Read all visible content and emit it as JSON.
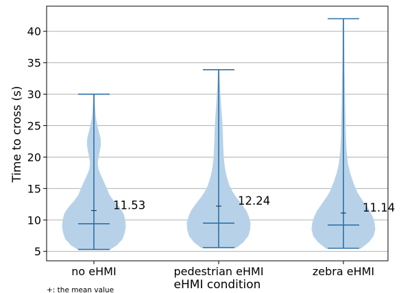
{
  "chart_data": {
    "type": "violin",
    "xlabel": "eHMI condition",
    "ylabel": "Time to cross (s)",
    "ylim": [
      3.5,
      44
    ],
    "yticks": [
      5,
      10,
      15,
      20,
      25,
      30,
      35,
      40
    ],
    "grid": "horizontal",
    "footnote": "+: the mean value",
    "colors": {
      "violin": "#b7d2e8",
      "lines": "#2b6fa8",
      "grid": "#b0b0b0"
    },
    "series": [
      {
        "category": "no eHMI",
        "min": 5.3,
        "max": 30,
        "median": 9.4,
        "mean": 11.5,
        "mean_label": "11.53",
        "density": [
          [
            5.3,
            0.5
          ],
          [
            6,
            0.72
          ],
          [
            7,
            0.9
          ],
          [
            8,
            0.97
          ],
          [
            9,
            1.0
          ],
          [
            10,
            0.98
          ],
          [
            11,
            0.93
          ],
          [
            12,
            0.8
          ],
          [
            13,
            0.62
          ],
          [
            14,
            0.48
          ],
          [
            15,
            0.4
          ],
          [
            16,
            0.31
          ],
          [
            17,
            0.22
          ],
          [
            18,
            0.14
          ],
          [
            19,
            0.11
          ],
          [
            20,
            0.14
          ],
          [
            21,
            0.18
          ],
          [
            22,
            0.21
          ],
          [
            23,
            0.2
          ],
          [
            24,
            0.15
          ],
          [
            25,
            0.1
          ],
          [
            26,
            0.06
          ],
          [
            27,
            0.04
          ],
          [
            28,
            0.025
          ],
          [
            29,
            0.015
          ],
          [
            30,
            0.01
          ]
        ]
      },
      {
        "category": "pedestrian eHMI",
        "min": 5.6,
        "max": 33.9,
        "median": 9.5,
        "mean": 12.2,
        "mean_label": "12.24",
        "density": [
          [
            5.6,
            0.55
          ],
          [
            6.5,
            0.78
          ],
          [
            7.5,
            0.93
          ],
          [
            8.5,
            0.99
          ],
          [
            9.5,
            1.0
          ],
          [
            10.5,
            0.95
          ],
          [
            11.5,
            0.86
          ],
          [
            12.5,
            0.72
          ],
          [
            13.5,
            0.56
          ],
          [
            14.5,
            0.43
          ],
          [
            15.5,
            0.33
          ],
          [
            17,
            0.24
          ],
          [
            18.5,
            0.18
          ],
          [
            20,
            0.15
          ],
          [
            22,
            0.13
          ],
          [
            24,
            0.12
          ],
          [
            26,
            0.1
          ],
          [
            28,
            0.07
          ],
          [
            30,
            0.045
          ],
          [
            32,
            0.025
          ],
          [
            33.9,
            0.01
          ]
        ]
      },
      {
        "category": "zebra eHMI",
        "min": 5.5,
        "max": 42,
        "median": 9.2,
        "mean": 11.1,
        "mean_label": "11.14",
        "density": [
          [
            5.5,
            0.55
          ],
          [
            6.5,
            0.8
          ],
          [
            7.5,
            0.95
          ],
          [
            8.5,
            1.0
          ],
          [
            9.5,
            0.98
          ],
          [
            10.5,
            0.92
          ],
          [
            11.5,
            0.82
          ],
          [
            12.5,
            0.68
          ],
          [
            13.5,
            0.54
          ],
          [
            14.5,
            0.42
          ],
          [
            16,
            0.3
          ],
          [
            17.5,
            0.2
          ],
          [
            19,
            0.13
          ],
          [
            21,
            0.09
          ],
          [
            23,
            0.07
          ],
          [
            25,
            0.06
          ],
          [
            28,
            0.045
          ],
          [
            31,
            0.035
          ],
          [
            34,
            0.025
          ],
          [
            37,
            0.018
          ],
          [
            40,
            0.012
          ],
          [
            42,
            0.008
          ]
        ]
      }
    ]
  }
}
